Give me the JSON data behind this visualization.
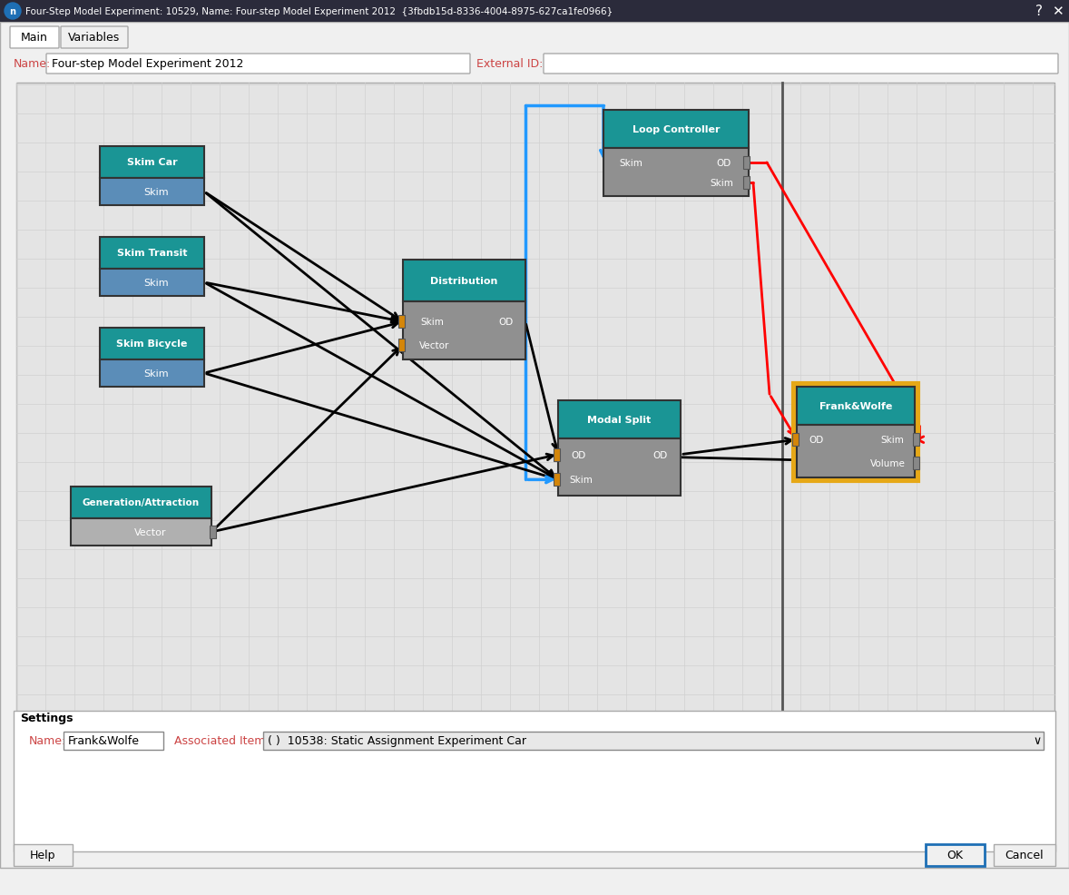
{
  "title": "Four-Step Model Experiment: 10529, Name: Four-step Model Experiment 2012  {3fbdb15d-8336-4004-8975-627ca1fe0966}",
  "name_value": "Four-step Model Experiment 2012",
  "teal": "#1a9595",
  "blue_skim": "#5b8db8",
  "gray_node": "#b0b0b0",
  "gray_port": "#909090",
  "orange_port": "#d4860a",
  "yellow_border": "#e6a817",
  "dark_gray_port": "#888888",
  "settings_name": "Frank&Wolfe",
  "settings_assoc": "( )  10538: Static Assignment Experiment Car"
}
